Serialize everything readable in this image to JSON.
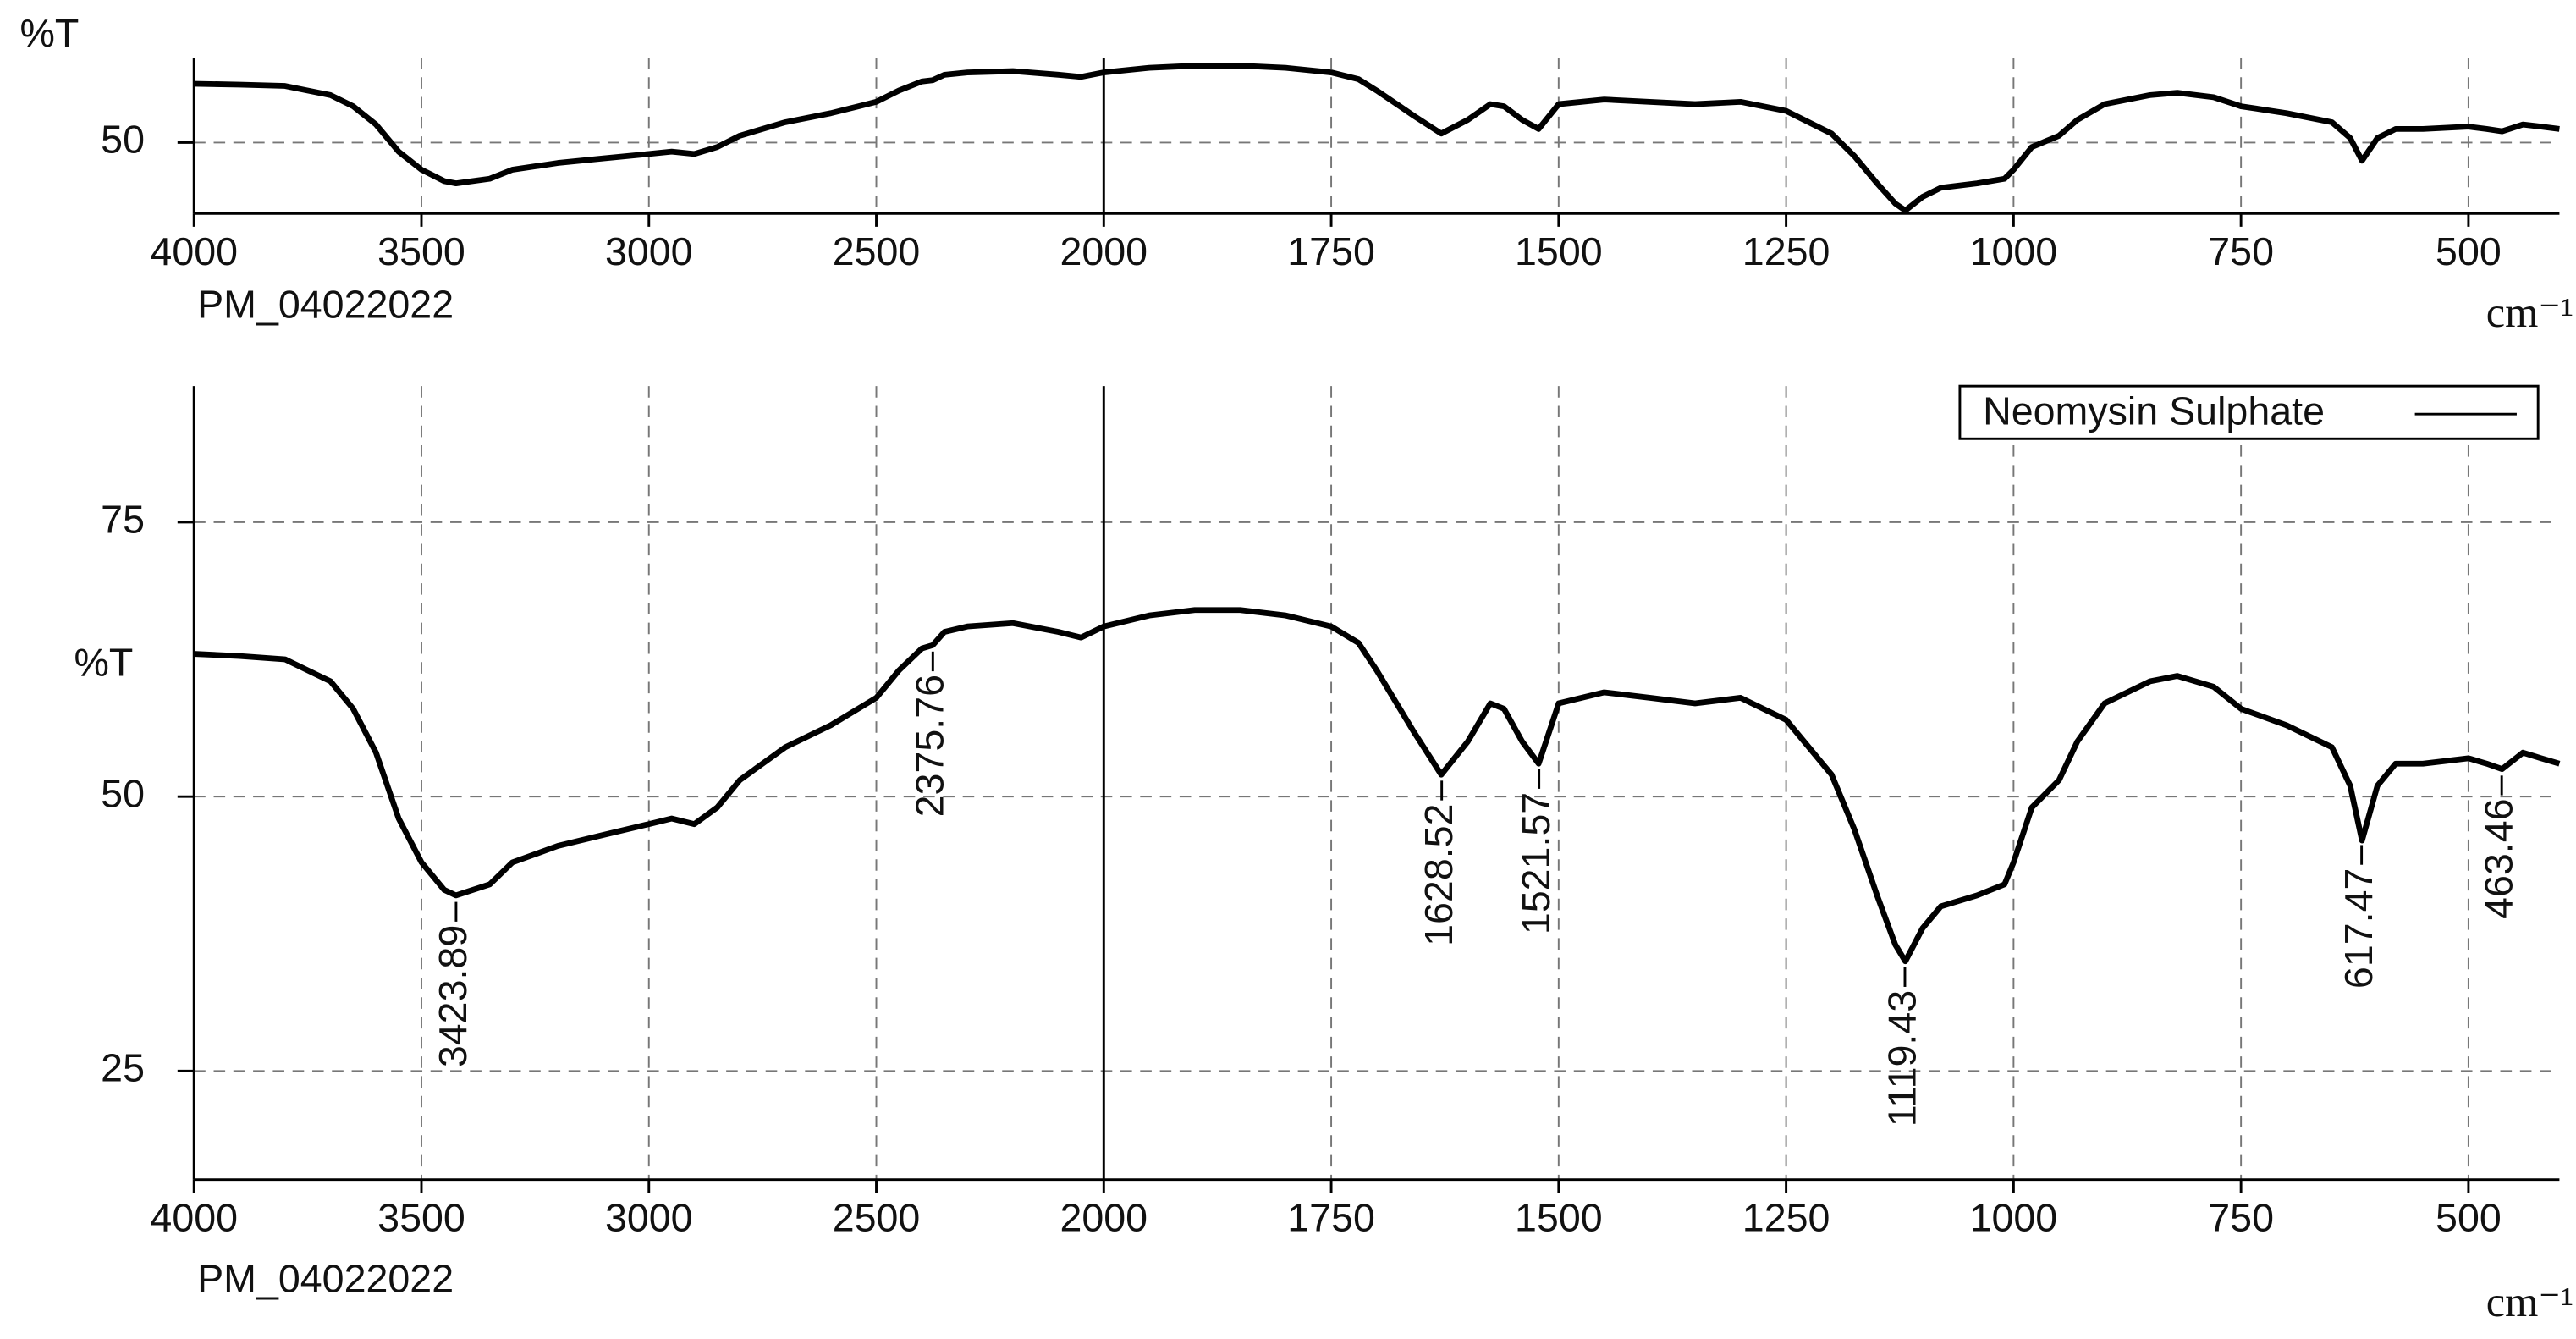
{
  "chart_data": [
    {
      "type": "line",
      "y_label": "%T",
      "subtitle": "PM_04022022",
      "x_label": "cm⁻¹",
      "xlim": [
        4000,
        400
      ],
      "xticks": [
        4000,
        3500,
        3000,
        2500,
        2000,
        1750,
        1500,
        1250,
        1000,
        750,
        500
      ],
      "ylim": [
        34.3,
        68.8
      ],
      "yticks": [
        50
      ],
      "grid": true,
      "x": [
        4000,
        3900,
        3800,
        3700,
        3650,
        3600,
        3550,
        3500,
        3450,
        3424,
        3350,
        3300,
        3200,
        3100,
        3000,
        2950,
        2900,
        2850,
        2800,
        2700,
        2600,
        2500,
        2450,
        2400,
        2376,
        2350,
        2300,
        2200,
        2100,
        2050,
        2000,
        1950,
        1900,
        1850,
        1800,
        1750,
        1720,
        1700,
        1660,
        1629,
        1600,
        1575,
        1560,
        1540,
        1522,
        1500,
        1450,
        1400,
        1350,
        1300,
        1250,
        1200,
        1175,
        1150,
        1130,
        1119,
        1100,
        1080,
        1040,
        1010,
        1000,
        980,
        950,
        930,
        900,
        850,
        820,
        780,
        750,
        700,
        650,
        630,
        617,
        600,
        580,
        550,
        500,
        480,
        463,
        440,
        420,
        400
      ],
      "series": [
        {
          "color": "#000000",
          "values": [
            63,
            62.8,
            62.5,
            60.5,
            58,
            54,
            48,
            44,
            41.5,
            41,
            42,
            44,
            45.5,
            46.5,
            47.5,
            48,
            47.5,
            49,
            51.5,
            54.5,
            56.5,
            59,
            61.5,
            63.5,
            63.8,
            65,
            65.5,
            65.8,
            65,
            64.5,
            65.5,
            66.5,
            67,
            67,
            66.5,
            65.5,
            64,
            61.5,
            56,
            52,
            55,
            58.5,
            58,
            55,
            53,
            58.5,
            59.5,
            59,
            58.5,
            59,
            57,
            52,
            47,
            41,
            36.5,
            35,
            38,
            40,
            41,
            42,
            44,
            49,
            51.5,
            55,
            58.5,
            60.5,
            61,
            60,
            58,
            56.5,
            54.5,
            51,
            46,
            51,
            53,
            53,
            53.5,
            53,
            52.5,
            54,
            53.5,
            53
          ]
        }
      ]
    },
    {
      "type": "line",
      "y_label": "%T",
      "subtitle": "PM_04022022",
      "x_label": "cm⁻¹",
      "xlim": [
        4000,
        400
      ],
      "xticks": [
        4000,
        3500,
        3000,
        2500,
        2000,
        1750,
        1500,
        1250,
        1000,
        750,
        500
      ],
      "ylim": [
        15.1,
        87.4
      ],
      "yticks": [
        25,
        50,
        75
      ],
      "grid": true,
      "legend": "top-right",
      "peak_labels": [
        3423.89,
        2375.76,
        1628.52,
        1521.57,
        1119.43,
        617.47,
        463.46
      ],
      "x": [
        4000,
        3900,
        3800,
        3700,
        3650,
        3600,
        3550,
        3500,
        3450,
        3424,
        3350,
        3300,
        3200,
        3100,
        3000,
        2950,
        2900,
        2850,
        2800,
        2700,
        2600,
        2500,
        2450,
        2400,
        2376,
        2350,
        2300,
        2200,
        2100,
        2050,
        2000,
        1950,
        1900,
        1850,
        1800,
        1750,
        1720,
        1700,
        1660,
        1629,
        1600,
        1575,
        1560,
        1540,
        1522,
        1500,
        1450,
        1400,
        1350,
        1300,
        1250,
        1200,
        1175,
        1150,
        1130,
        1119,
        1100,
        1080,
        1040,
        1010,
        1000,
        980,
        950,
        930,
        900,
        850,
        820,
        780,
        750,
        700,
        650,
        630,
        617,
        600,
        580,
        550,
        500,
        480,
        463,
        440,
        420,
        400
      ],
      "series": [
        {
          "name": "Neomysin Sulphate",
          "color": "#000000",
          "values": [
            63,
            62.8,
            62.5,
            60.5,
            58,
            54,
            48,
            44,
            41.5,
            41,
            42,
            44,
            45.5,
            46.5,
            47.5,
            48,
            47.5,
            49,
            51.5,
            54.5,
            56.5,
            59,
            61.5,
            63.5,
            63.8,
            65,
            65.5,
            65.8,
            65,
            64.5,
            65.5,
            66.5,
            67,
            67,
            66.5,
            65.5,
            64,
            61.5,
            56,
            52,
            55,
            58.5,
            58,
            55,
            53,
            58.5,
            59.5,
            59,
            58.5,
            59,
            57,
            52,
            47,
            41,
            36.5,
            35,
            38,
            40,
            41,
            42,
            44,
            49,
            51.5,
            55,
            58.5,
            60.5,
            61,
            60,
            58,
            56.5,
            54.5,
            51,
            46,
            51,
            53,
            53,
            53.5,
            53,
            52.5,
            54,
            53.5,
            53
          ]
        }
      ]
    }
  ]
}
